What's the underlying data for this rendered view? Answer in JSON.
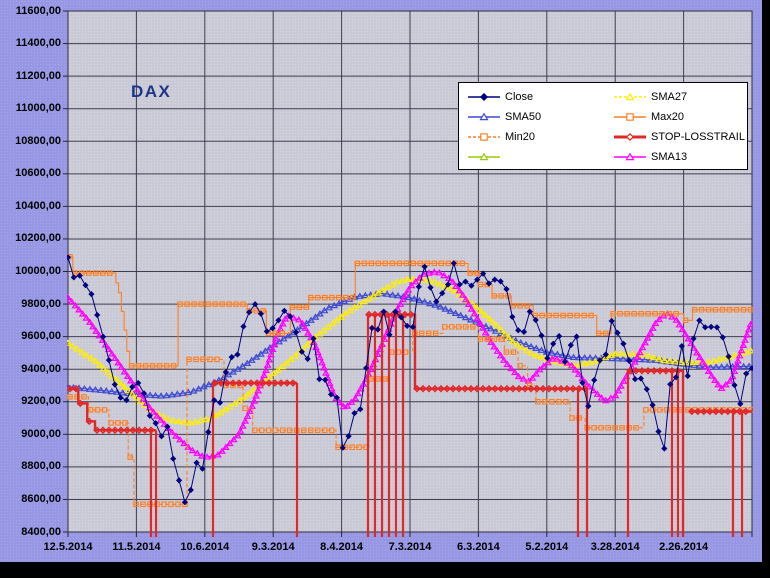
{
  "title": {
    "text": "DAX",
    "color": "#1c3687"
  },
  "window": {
    "background": "#9797e4",
    "plot_background": "#cacad6",
    "grid_color": "#3e3e52",
    "frame_color": "#000000"
  },
  "legend": {
    "items": [
      {
        "label": "Close",
        "color": "#000080",
        "marker": "diamond",
        "filled": true,
        "dashed": false,
        "thick": false
      },
      {
        "label": "SMA27",
        "color": "#ffee00",
        "marker": "triangle",
        "filled": false,
        "dashed": true,
        "thick": false
      },
      {
        "label": "SMA50",
        "color": "#3f4bd0",
        "marker": "triangle",
        "filled": false,
        "dashed": false,
        "thick": false
      },
      {
        "label": "Max20",
        "color": "#ff7f20",
        "marker": "square",
        "filled": false,
        "dashed": false,
        "thick": false
      },
      {
        "label": "Min20",
        "color": "#ff7f20",
        "marker": "square",
        "filled": false,
        "dashed": true,
        "thick": false
      },
      {
        "label": "STOP-LOSSTRAIL",
        "color": "#e02828",
        "marker": "diamond",
        "filled": false,
        "dashed": false,
        "thick": true
      },
      {
        "label": "",
        "color": "#99cc00",
        "marker": "triangle",
        "filled": false,
        "dashed": false,
        "thick": false
      },
      {
        "label": "SMA13",
        "color": "#ff00ff",
        "marker": "triangle",
        "filled": false,
        "dashed": false,
        "thick": false
      }
    ]
  },
  "chart_data": {
    "type": "line",
    "title": "DAX",
    "x_axis": {
      "labels": [
        "12.5.2014",
        "11.5.2014",
        "10.6.2014",
        "9.3.2014",
        "8.4.2014",
        "7.3.2014",
        "6.3.2014",
        "5.2.2014",
        "3.28.2014",
        "2.26.2014"
      ],
      "grid_divisions": 10,
      "note": "time axis reversed, most recent date at left"
    },
    "y_axis": {
      "min": 8400,
      "max": 11600,
      "step": 200,
      "labels": [
        "11600,00",
        "11400,00",
        "11200,00",
        "11000,00",
        "10800,00",
        "10600,00",
        "10400,00",
        "10200,00",
        "10000,00",
        "9800,00",
        "9600,00",
        "9400,00",
        "9200,00",
        "9000,00",
        "8800,00",
        "8600,00",
        "8400,00"
      ]
    },
    "series": [
      {
        "name": "Close",
        "color": "#000080",
        "marker": "diamond",
        "marker_filled": true,
        "line_width": 1,
        "values": [
          10087,
          9964,
          9975,
          9916,
          9861,
          9733,
          9599,
          9456,
          9306,
          9225,
          9210,
          9291,
          9315,
          9251,
          9114,
          9068,
          8988,
          9047,
          8850,
          8717,
          8583,
          8658,
          8825,
          8789,
          9014,
          9209,
          9195,
          9382,
          9474,
          9490,
          9662,
          9750,
          9799,
          9740,
          9632,
          9651,
          9700,
          9758,
          9724,
          9626,
          9507,
          9463,
          9588,
          9339,
          9334,
          9245,
          9225,
          8918,
          8989,
          9130,
          9154,
          9407,
          9653,
          9644,
          9754,
          9612,
          9754,
          9719,
          9666,
          9659,
          9906,
          10029,
          9902,
          9815,
          9867,
          9920,
          10051,
          9920,
          9938,
          9913,
          9950,
          9987,
          9926,
          9950,
          9939,
          9892,
          9721,
          9639,
          9629,
          9754,
          9702,
          9607,
          9467,
          9556,
          9603,
          9446,
          9548,
          9600,
          9317,
          9173,
          9333,
          9454,
          9490,
          9696,
          9623,
          9556,
          9451,
          9339,
          9343,
          9277,
          9180,
          9017,
          8913,
          9307,
          9351,
          9542,
          9358,
          9588,
          9699,
          9657,
          9660,
          9657,
          9595,
          9478,
          9302,
          9187,
          9373,
          9406
        ]
      },
      {
        "name": "SMA50",
        "color": "#3f4bd0",
        "marker": "triangle",
        "line_width": 1.1,
        "points": [
          [
            0,
            9290
          ],
          [
            0.05,
            9270
          ],
          [
            0.1,
            9245
          ],
          [
            0.14,
            9235
          ],
          [
            0.18,
            9260
          ],
          [
            0.22,
            9330
          ],
          [
            0.26,
            9430
          ],
          [
            0.3,
            9545
          ],
          [
            0.34,
            9655
          ],
          [
            0.38,
            9775
          ],
          [
            0.42,
            9845
          ],
          [
            0.46,
            9865
          ],
          [
            0.5,
            9840
          ],
          [
            0.54,
            9790
          ],
          [
            0.58,
            9720
          ],
          [
            0.62,
            9645
          ],
          [
            0.66,
            9565
          ],
          [
            0.7,
            9505
          ],
          [
            0.74,
            9472
          ],
          [
            0.78,
            9468
          ],
          [
            0.82,
            9462
          ],
          [
            0.86,
            9455
          ],
          [
            0.9,
            9432
          ],
          [
            0.94,
            9412
          ],
          [
            1.0,
            9418
          ]
        ]
      },
      {
        "name": "SMA27",
        "color": "#ffee00",
        "marker": "triangle",
        "dashed": true,
        "line_width": 1.1,
        "points": [
          [
            0,
            9560
          ],
          [
            0.04,
            9450
          ],
          [
            0.08,
            9300
          ],
          [
            0.12,
            9150
          ],
          [
            0.15,
            9085
          ],
          [
            0.18,
            9070
          ],
          [
            0.21,
            9100
          ],
          [
            0.25,
            9205
          ],
          [
            0.29,
            9335
          ],
          [
            0.33,
            9475
          ],
          [
            0.37,
            9625
          ],
          [
            0.41,
            9755
          ],
          [
            0.45,
            9860
          ],
          [
            0.48,
            9935
          ],
          [
            0.5,
            9955
          ],
          [
            0.53,
            9945
          ],
          [
            0.56,
            9895
          ],
          [
            0.59,
            9805
          ],
          [
            0.62,
            9695
          ],
          [
            0.65,
            9570
          ],
          [
            0.68,
            9490
          ],
          [
            0.71,
            9450
          ],
          [
            0.74,
            9425
          ],
          [
            0.77,
            9445
          ],
          [
            0.8,
            9495
          ],
          [
            0.84,
            9490
          ],
          [
            0.87,
            9455
          ],
          [
            0.9,
            9440
          ],
          [
            0.94,
            9445
          ],
          [
            0.97,
            9480
          ],
          [
            1.0,
            9515
          ]
        ]
      },
      {
        "name": "SMA13",
        "color": "#ff00ff",
        "marker": "triangle",
        "line_width": 1.1,
        "points": [
          [
            0,
            9840
          ],
          [
            0.03,
            9700
          ],
          [
            0.06,
            9520
          ],
          [
            0.09,
            9340
          ],
          [
            0.12,
            9160
          ],
          [
            0.15,
            9020
          ],
          [
            0.18,
            8905
          ],
          [
            0.2,
            8858
          ],
          [
            0.22,
            8875
          ],
          [
            0.25,
            9000
          ],
          [
            0.27,
            9180
          ],
          [
            0.29,
            9400
          ],
          [
            0.305,
            9600
          ],
          [
            0.32,
            9730
          ],
          [
            0.34,
            9700
          ],
          [
            0.36,
            9560
          ],
          [
            0.375,
            9400
          ],
          [
            0.39,
            9230
          ],
          [
            0.405,
            9160
          ],
          [
            0.42,
            9220
          ],
          [
            0.44,
            9370
          ],
          [
            0.46,
            9560
          ],
          [
            0.48,
            9755
          ],
          [
            0.5,
            9905
          ],
          [
            0.52,
            9985
          ],
          [
            0.54,
            10000
          ],
          [
            0.56,
            9950
          ],
          [
            0.58,
            9840
          ],
          [
            0.6,
            9700
          ],
          [
            0.62,
            9555
          ],
          [
            0.64,
            9440
          ],
          [
            0.66,
            9350
          ],
          [
            0.675,
            9325
          ],
          [
            0.69,
            9400
          ],
          [
            0.71,
            9470
          ],
          [
            0.735,
            9430
          ],
          [
            0.76,
            9300
          ],
          [
            0.785,
            9205
          ],
          [
            0.8,
            9235
          ],
          [
            0.83,
            9455
          ],
          [
            0.86,
            9690
          ],
          [
            0.875,
            9745
          ],
          [
            0.89,
            9700
          ],
          [
            0.915,
            9530
          ],
          [
            0.94,
            9365
          ],
          [
            0.955,
            9280
          ],
          [
            0.97,
            9335
          ],
          [
            0.985,
            9520
          ],
          [
            1.0,
            9700
          ]
        ]
      },
      {
        "name": "Max20",
        "color": "#ff7f20",
        "marker": "square",
        "line_width": 1.1,
        "steps": [
          [
            0,
            0.007,
            10090
          ],
          [
            0.007,
            0.07,
            9990
          ],
          [
            0.07,
            0.074,
            9930
          ],
          [
            0.074,
            0.078,
            9870
          ],
          [
            0.078,
            0.082,
            9755
          ],
          [
            0.082,
            0.086,
            9640
          ],
          [
            0.086,
            0.09,
            9510
          ],
          [
            0.09,
            0.161,
            9420
          ],
          [
            0.161,
            0.262,
            9800
          ],
          [
            0.262,
            0.29,
            9758
          ],
          [
            0.29,
            0.325,
            9620
          ],
          [
            0.325,
            0.352,
            9780
          ],
          [
            0.352,
            0.42,
            9840
          ],
          [
            0.42,
            0.585,
            10050
          ],
          [
            0.585,
            0.6,
            9990
          ],
          [
            0.6,
            0.62,
            9920
          ],
          [
            0.62,
            0.648,
            9850
          ],
          [
            0.648,
            0.68,
            9790
          ],
          [
            0.68,
            0.773,
            9730
          ],
          [
            0.773,
            0.794,
            9620
          ],
          [
            0.794,
            0.9,
            9740
          ],
          [
            0.9,
            0.913,
            9700
          ],
          [
            0.913,
            1.0,
            9765
          ]
        ]
      },
      {
        "name": "Min20",
        "color": "#ff7f20",
        "marker": "square",
        "dashed": true,
        "line_width": 1.1,
        "steps": [
          [
            0,
            0.03,
            9230
          ],
          [
            0.03,
            0.06,
            9150
          ],
          [
            0.06,
            0.088,
            9070
          ],
          [
            0.088,
            0.0965,
            8860
          ],
          [
            0.0965,
            0.174,
            8570
          ],
          [
            0.174,
            0.228,
            9460
          ],
          [
            0.228,
            0.256,
            9300
          ],
          [
            0.256,
            0.27,
            9160
          ],
          [
            0.27,
            0.392,
            9025
          ],
          [
            0.392,
            0.44,
            8920
          ],
          [
            0.44,
            0.47,
            9340
          ],
          [
            0.47,
            0.504,
            9505
          ],
          [
            0.504,
            0.548,
            9620
          ],
          [
            0.548,
            0.6,
            9660
          ],
          [
            0.6,
            0.638,
            9585
          ],
          [
            0.638,
            0.658,
            9505
          ],
          [
            0.658,
            0.672,
            9420
          ],
          [
            0.672,
            0.684,
            9300
          ],
          [
            0.684,
            0.734,
            9200
          ],
          [
            0.734,
            0.756,
            9100
          ],
          [
            0.756,
            0.842,
            9040
          ],
          [
            0.842,
            1.0,
            9150
          ]
        ]
      },
      {
        "name": "STOP-LOSSTRAIL",
        "color": "#e02828",
        "marker": "diamond",
        "line_width": 2.4,
        "segments": [
          [
            0,
            0.015,
            9280
          ],
          [
            0.015,
            0.028,
            9190
          ],
          [
            0.028,
            0.0395,
            9080
          ],
          [
            0.0395,
            0.1287,
            9025
          ],
          [
            0.212,
            0.3348,
            9315
          ],
          [
            0.437,
            0.5073,
            9735
          ],
          [
            0.5073,
            0.7588,
            9280
          ],
          [
            0.8187,
            0.8991,
            9390
          ],
          [
            0.909,
            1.0,
            9140
          ]
        ],
        "drops": [
          [
            0.1213,
            9025
          ],
          [
            0.1287,
            9025
          ],
          [
            0.212,
            9315
          ],
          [
            0.3348,
            9315
          ],
          [
            0.4386,
            9735
          ],
          [
            0.4488,
            9735
          ],
          [
            0.4591,
            9735
          ],
          [
            0.4693,
            9735
          ],
          [
            0.4795,
            9735
          ],
          [
            0.4898,
            9735
          ],
          [
            0.7456,
            9280
          ],
          [
            0.7588,
            9280
          ],
          [
            0.8187,
            9390
          ],
          [
            0.883,
            9390
          ],
          [
            0.8918,
            9390
          ],
          [
            0.8991,
            9390
          ],
          [
            0.9722,
            9140
          ],
          [
            0.9854,
            9140
          ]
        ]
      }
    ]
  }
}
